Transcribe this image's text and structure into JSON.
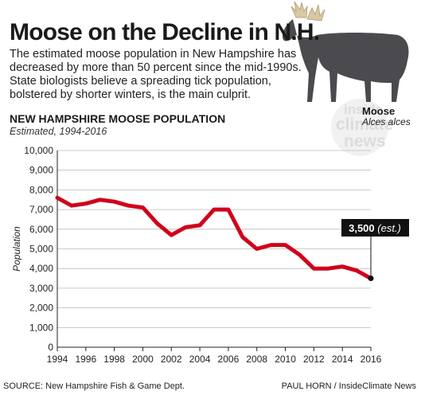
{
  "header": {
    "headline": "Moose on the Decline in N.H.",
    "dek": "The estimated moose population in New Hampshire has decreased by more than 50 percent since the mid-1990s. State biologists believe a spreading tick population, bolstered by shorter winters, is the main culprit."
  },
  "moose": {
    "name": "Moose",
    "scientific": "Alces alces",
    "watermark": [
      "inside",
      "climate",
      "news"
    ]
  },
  "colors": {
    "line": "#d0021b",
    "grid": "#bbbbbb",
    "axis": "#222222",
    "moose_body": "#4b4b4f",
    "antler": "#d9c8a4"
  },
  "footer": {
    "source": "SOURCE: New Hampshire Fish & Game Dept.",
    "credit": "PAUL HORN / InsideClimate News"
  },
  "chart_data": {
    "type": "line",
    "title": "NEW HAMPSHIRE MOOSE POPULATION",
    "subtitle": "Estimated, 1994-2016",
    "xlabel": "",
    "ylabel": "Population",
    "x": [
      1994,
      1995,
      1996,
      1997,
      1998,
      1999,
      2000,
      2001,
      2002,
      2003,
      2004,
      2005,
      2006,
      2007,
      2008,
      2009,
      2010,
      2011,
      2012,
      2013,
      2014,
      2015,
      2016
    ],
    "values": [
      7600,
      7200,
      7300,
      7500,
      7400,
      7200,
      7100,
      6300,
      5700,
      6100,
      6200,
      7000,
      7000,
      5600,
      5000,
      5200,
      5200,
      4700,
      4000,
      4000,
      4100,
      3900,
      3500
    ],
    "xlim": [
      1994,
      2016
    ],
    "ylim": [
      0,
      10000
    ],
    "x_ticks": [
      1994,
      1996,
      1998,
      2000,
      2002,
      2004,
      2006,
      2008,
      2010,
      2012,
      2014,
      2016
    ],
    "y_ticks": [
      0,
      1000,
      2000,
      3000,
      4000,
      5000,
      6000,
      7000,
      8000,
      9000,
      10000
    ],
    "x_tick_labels": [
      "1994",
      "1996",
      "1998",
      "2000",
      "2002",
      "2004",
      "2006",
      "2008",
      "2010",
      "2012",
      "2014",
      "2016"
    ],
    "y_tick_labels": [
      "0",
      "1,000",
      "2,000",
      "3,000",
      "4,000",
      "5,000",
      "6,000",
      "7,000",
      "8,000",
      "9,000",
      "10,000"
    ],
    "grid": "horizontal",
    "annotation": {
      "x": 2016,
      "y": 3500,
      "value_text": "3,500",
      "note_text": "(est.)"
    }
  }
}
